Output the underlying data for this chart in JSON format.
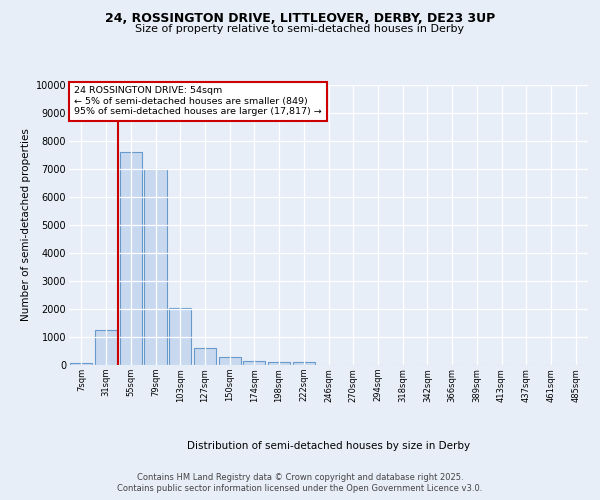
{
  "title_line1": "24, ROSSINGTON DRIVE, LITTLEOVER, DERBY, DE23 3UP",
  "title_line2": "Size of property relative to semi-detached houses in Derby",
  "xlabel": "Distribution of semi-detached houses by size in Derby",
  "ylabel": "Number of semi-detached properties",
  "categories": [
    "7sqm",
    "31sqm",
    "55sqm",
    "79sqm",
    "103sqm",
    "127sqm",
    "150sqm",
    "174sqm",
    "198sqm",
    "222sqm",
    "246sqm",
    "270sqm",
    "294sqm",
    "318sqm",
    "342sqm",
    "366sqm",
    "389sqm",
    "413sqm",
    "437sqm",
    "461sqm",
    "485sqm"
  ],
  "values": [
    60,
    1250,
    7600,
    7000,
    2020,
    590,
    280,
    150,
    120,
    100,
    0,
    0,
    0,
    0,
    0,
    0,
    0,
    0,
    0,
    0,
    0
  ],
  "bar_color": "#c8d9ef",
  "bar_edge_color": "#6699cc",
  "vline_color": "#cc0000",
  "vline_pos": 1.5,
  "annotation_text": "24 ROSSINGTON DRIVE: 54sqm\n← 5% of semi-detached houses are smaller (849)\n95% of semi-detached houses are larger (17,817) →",
  "annotation_box_color": "#ffffff",
  "annotation_box_edge": "#cc0000",
  "ylim": [
    0,
    10000
  ],
  "yticks": [
    0,
    1000,
    2000,
    3000,
    4000,
    5000,
    6000,
    7000,
    8000,
    9000,
    10000
  ],
  "background_color": "#e8eef8",
  "plot_bg_color": "#e8eef8",
  "grid_color": "#ffffff",
  "footnote1": "Contains HM Land Registry data © Crown copyright and database right 2025.",
  "footnote2": "Contains public sector information licensed under the Open Government Licence v3.0."
}
